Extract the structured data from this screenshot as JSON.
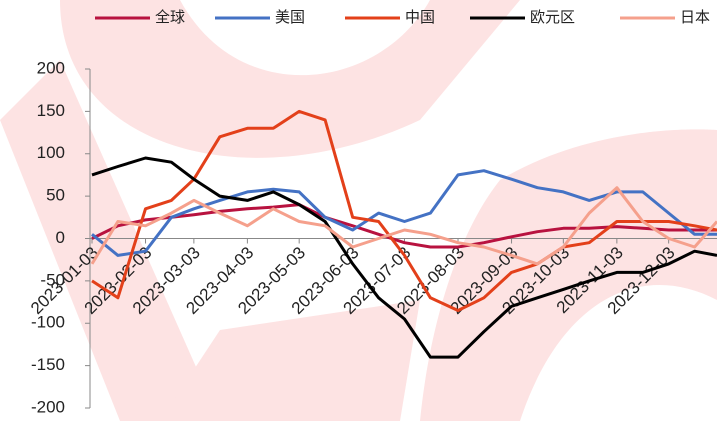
{
  "chart_data": {
    "type": "line",
    "x": [
      "2023-01-03",
      "2023-01-18",
      "2023-02-03",
      "2023-02-18",
      "2023-03-03",
      "2023-03-18",
      "2023-04-03",
      "2023-04-18",
      "2023-05-03",
      "2023-05-18",
      "2023-06-03",
      "2023-06-18",
      "2023-07-03",
      "2023-07-18",
      "2023-08-03",
      "2023-08-18",
      "2023-09-03",
      "2023-09-18",
      "2023-10-03",
      "2023-10-18",
      "2023-11-03",
      "2023-11-18",
      "2023-12-03",
      "2023-12-18",
      "2023-12-31"
    ],
    "series": [
      {
        "name": "全球",
        "color": "#b8123f",
        "values": [
          0,
          15,
          22,
          25,
          28,
          32,
          35,
          37,
          40,
          25,
          15,
          5,
          -5,
          -10,
          -10,
          -5,
          2,
          8,
          12,
          12,
          14,
          12,
          10,
          10,
          10
        ]
      },
      {
        "name": "美国",
        "color": "#4472c4",
        "values": [
          5,
          -20,
          -15,
          25,
          35,
          45,
          55,
          58,
          55,
          25,
          10,
          30,
          20,
          30,
          75,
          80,
          70,
          60,
          55,
          45,
          55,
          55,
          30,
          5,
          5
        ]
      },
      {
        "name": "中国",
        "color": "#e3401a",
        "values": [
          -50,
          -70,
          35,
          45,
          70,
          120,
          130,
          130,
          150,
          140,
          25,
          20,
          -20,
          -70,
          -85,
          -70,
          -40,
          -30,
          -10,
          -5,
          20,
          20,
          20,
          15,
          10
        ]
      },
      {
        "name": "欧元区",
        "color": "#000000",
        "values": [
          75,
          85,
          95,
          90,
          70,
          50,
          45,
          55,
          40,
          20,
          -30,
          -70,
          -95,
          -140,
          -140,
          -110,
          -80,
          -70,
          -60,
          -50,
          -40,
          -40,
          -30,
          -15,
          -20
        ]
      },
      {
        "name": "日本",
        "color": "#f5a08c",
        "values": [
          -30,
          20,
          15,
          30,
          45,
          30,
          15,
          35,
          20,
          15,
          -10,
          0,
          10,
          5,
          -5,
          -10,
          -20,
          -30,
          -10,
          30,
          60,
          20,
          0,
          -10,
          20
        ]
      }
    ],
    "xlim": [
      "2023-01-03",
      "2023-12-31"
    ],
    "xticks": [
      "2023-01-03",
      "2023-02-03",
      "2023-03-03",
      "2023-04-03",
      "2023-05-03",
      "2023-06-03",
      "2023-07-03",
      "2023-08-03",
      "2023-09-03",
      "2023-10-03",
      "2023-11-03",
      "2023-12-03"
    ],
    "ylim": [
      -200,
      200
    ],
    "yticks": [
      -200,
      -150,
      -100,
      -50,
      0,
      50,
      100,
      150,
      200
    ]
  }
}
